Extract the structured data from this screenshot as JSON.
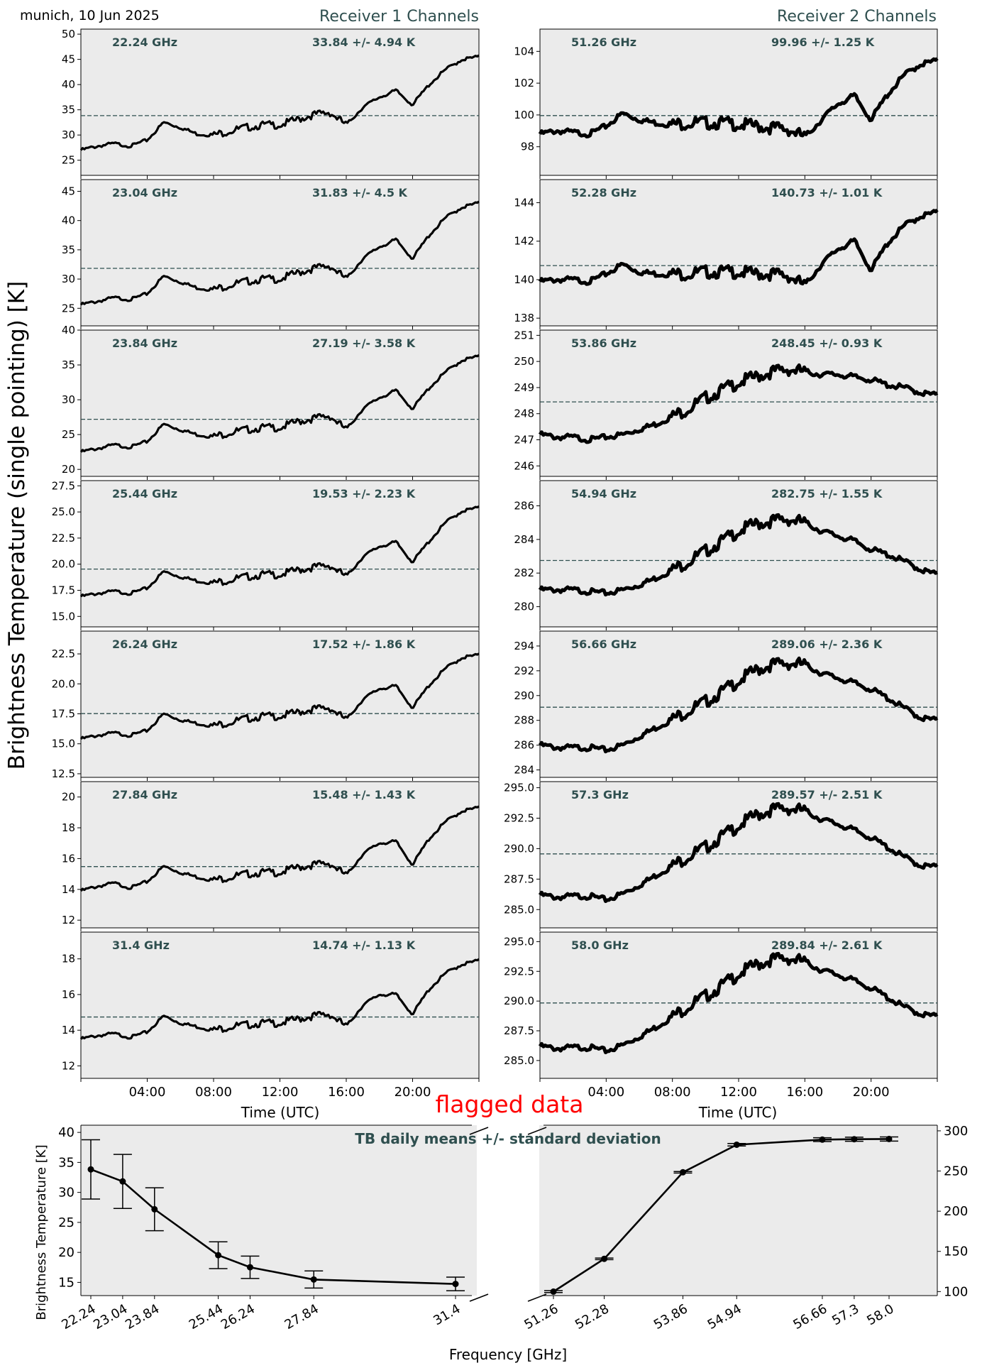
{
  "header": {
    "station_date": "munich, 10 Jun 2025",
    "receiver1_title": "Receiver 1 Channels",
    "receiver2_title": "Receiver 2 Channels",
    "ylabel": "Brightness Temperature (single pointing) [K]",
    "xlabel": "Time (UTC)"
  },
  "colors": {
    "panel_bg": "#ebebeb",
    "series": "#000000",
    "annotation": "#2f4f4f",
    "flag": "#ff0000"
  },
  "summary": {
    "flag_text": "flagged data",
    "title": "TB daily means +/- standard deviation",
    "ylabel": "Brightness Temperature [K]",
    "xlabel": "Frequency [GHz]"
  },
  "chart_data": [
    {
      "type": "line",
      "receiver": 1,
      "channel": "22.24 GHz",
      "stat": "33.84 +/- 4.94 K",
      "mean": 33.84,
      "std": 4.94,
      "ylim": [
        22,
        51
      ],
      "yticks": [
        25,
        30,
        35,
        40,
        45,
        50
      ],
      "xticks": [
        "04:00",
        "08:00",
        "12:00",
        "16:00",
        "20:00"
      ],
      "xlim": [
        0,
        24
      ],
      "x": [
        0,
        1,
        2,
        3,
        4,
        5,
        6,
        7,
        8,
        9,
        10,
        11,
        12,
        13,
        14,
        15,
        16,
        17,
        18,
        19,
        20,
        21,
        22,
        23,
        24
      ],
      "y": [
        27,
        27.8,
        28.3,
        27.8,
        29,
        32.5,
        31.5,
        30.2,
        30,
        30.8,
        31.5,
        32,
        32,
        33,
        34,
        34.5,
        32,
        35.5,
        37.5,
        38.8,
        36,
        40,
        43,
        45,
        45.5
      ]
    },
    {
      "type": "line",
      "receiver": 1,
      "channel": "23.04 GHz",
      "stat": "31.83 +/- 4.5 K",
      "mean": 31.83,
      "std": 4.5,
      "ylim": [
        22,
        47
      ],
      "yticks": [
        25,
        30,
        35,
        40,
        45
      ],
      "xticks": [
        "04:00",
        "08:00",
        "12:00",
        "16:00",
        "20:00"
      ],
      "xlim": [
        0,
        24
      ],
      "x": [
        0,
        1,
        2,
        3,
        4,
        5,
        6,
        7,
        8,
        9,
        10,
        11,
        12,
        13,
        14,
        15,
        16,
        17,
        18,
        19,
        20,
        21,
        22,
        23,
        24
      ],
      "y": [
        25.6,
        26.2,
        26.8,
        26.5,
        27.5,
        30.5,
        29.5,
        28.5,
        28.2,
        29,
        29.6,
        30,
        30,
        31,
        31.8,
        32.3,
        30,
        33.5,
        35.5,
        36.7,
        33.5,
        37.5,
        40.5,
        42.3,
        43
      ]
    },
    {
      "type": "line",
      "receiver": 1,
      "channel": "23.84 GHz",
      "stat": "27.19 +/- 3.58 K",
      "mean": 27.19,
      "std": 3.58,
      "ylim": [
        19,
        40
      ],
      "yticks": [
        20,
        25,
        30,
        35,
        40
      ],
      "xticks": [
        "04:00",
        "08:00",
        "12:00",
        "16:00",
        "20:00"
      ],
      "xlim": [
        0,
        24
      ],
      "x": [
        0,
        1,
        2,
        3,
        4,
        5,
        6,
        7,
        8,
        9,
        10,
        11,
        12,
        13,
        14,
        15,
        16,
        17,
        18,
        19,
        20,
        21,
        22,
        23,
        24
      ],
      "y": [
        22.5,
        23,
        23.5,
        23.2,
        24,
        26.5,
        25.7,
        25,
        24.7,
        25.3,
        25.7,
        26,
        26,
        26.8,
        27.3,
        27.7,
        25.7,
        28.7,
        30.3,
        31.3,
        28.7,
        31.7,
        34,
        35.7,
        36.2
      ]
    },
    {
      "type": "line",
      "receiver": 1,
      "channel": "25.44 GHz",
      "stat": "19.53 +/- 2.23 K",
      "mean": 19.53,
      "std": 2.23,
      "ylim": [
        14,
        28
      ],
      "yticks": [
        15.0,
        17.5,
        20.0,
        22.5,
        25.0,
        27.5
      ],
      "ytick_labels": [
        "15.0",
        "17.5",
        "20.0",
        "22.5",
        "25.0",
        "27.5"
      ],
      "xticks": [
        "04:00",
        "08:00",
        "12:00",
        "16:00",
        "20:00"
      ],
      "xlim": [
        0,
        24
      ],
      "x": [
        0,
        1,
        2,
        3,
        4,
        5,
        6,
        7,
        8,
        9,
        10,
        11,
        12,
        13,
        14,
        15,
        16,
        17,
        18,
        19,
        20,
        21,
        22,
        23,
        24
      ],
      "y": [
        16.9,
        17.2,
        17.4,
        17.2,
        17.7,
        19.3,
        18.8,
        18.4,
        18.2,
        18.5,
        18.8,
        19,
        19,
        19.4,
        19.7,
        19.9,
        18.8,
        20.7,
        21.7,
        22.1,
        20.2,
        22.2,
        24,
        25.1,
        25.4
      ]
    },
    {
      "type": "line",
      "receiver": 1,
      "channel": "26.24 GHz",
      "stat": "17.52 +/- 1.86 K",
      "mean": 17.52,
      "std": 1.86,
      "ylim": [
        12.2,
        24.4
      ],
      "yticks": [
        12.5,
        15.0,
        17.5,
        20.0,
        22.5
      ],
      "ytick_labels": [
        "12.5",
        "15.0",
        "17.5",
        "20.0",
        "22.5"
      ],
      "xticks": [
        "04:00",
        "08:00",
        "12:00",
        "16:00",
        "20:00"
      ],
      "xlim": [
        0,
        24
      ],
      "x": [
        0,
        1,
        2,
        3,
        4,
        5,
        6,
        7,
        8,
        9,
        10,
        11,
        12,
        13,
        14,
        15,
        16,
        17,
        18,
        19,
        20,
        21,
        22,
        23,
        24
      ],
      "y": [
        15.4,
        15.7,
        15.9,
        15.7,
        16.1,
        17.5,
        17,
        16.7,
        16.5,
        16.8,
        17.1,
        17.3,
        17.3,
        17.6,
        17.9,
        18,
        17,
        18.7,
        19.6,
        19.8,
        18,
        19.9,
        21.3,
        22.2,
        22.4
      ]
    },
    {
      "type": "line",
      "receiver": 1,
      "channel": "27.84 GHz",
      "stat": "15.48 +/- 1.43 K",
      "mean": 15.48,
      "std": 1.43,
      "ylim": [
        11.5,
        21
      ],
      "yticks": [
        12,
        14,
        16,
        18,
        20
      ],
      "xticks": [
        "04:00",
        "08:00",
        "12:00",
        "16:00",
        "20:00"
      ],
      "xlim": [
        0,
        24
      ],
      "x": [
        0,
        1,
        2,
        3,
        4,
        5,
        6,
        7,
        8,
        9,
        10,
        11,
        12,
        13,
        14,
        15,
        16,
        17,
        18,
        19,
        20,
        21,
        22,
        23,
        24
      ],
      "y": [
        13.9,
        14.2,
        14.4,
        14.1,
        14.5,
        15.5,
        15.1,
        14.8,
        14.6,
        14.8,
        15,
        15.1,
        15.1,
        15.4,
        15.6,
        15.7,
        14.9,
        16.3,
        17,
        17.1,
        15.6,
        17.3,
        18.4,
        19.1,
        19.3
      ]
    },
    {
      "type": "line",
      "receiver": 1,
      "channel": "31.4 GHz",
      "stat": "14.74 +/- 1.13 K",
      "mean": 14.74,
      "std": 1.13,
      "ylim": [
        11.3,
        19.5
      ],
      "yticks": [
        12,
        14,
        16,
        18
      ],
      "xticks": [
        "04:00",
        "08:00",
        "12:00",
        "16:00",
        "20:00"
      ],
      "xlim": [
        0,
        24
      ],
      "x": [
        0,
        1,
        2,
        3,
        4,
        5,
        6,
        7,
        8,
        9,
        10,
        11,
        12,
        13,
        14,
        15,
        16,
        17,
        18,
        19,
        20,
        21,
        22,
        23,
        24
      ],
      "y": [
        13.5,
        13.7,
        13.8,
        13.6,
        13.9,
        14.8,
        14.4,
        14.2,
        14,
        14.2,
        14.3,
        14.4,
        14.4,
        14.6,
        14.8,
        14.9,
        14.2,
        15.4,
        16,
        16,
        14.9,
        16.3,
        17.2,
        17.7,
        17.9
      ]
    },
    {
      "type": "line",
      "receiver": 2,
      "channel": "51.26 GHz",
      "stat": "99.96 +/- 1.25 K",
      "mean": 99.96,
      "std": 1.25,
      "ylim": [
        96.2,
        105.4
      ],
      "yticks": [
        98,
        100,
        102,
        104
      ],
      "xticks": [
        "04:00",
        "08:00",
        "12:00",
        "16:00",
        "20:00"
      ],
      "xlim": [
        0,
        24
      ],
      "x": [
        0,
        1,
        2,
        3,
        4,
        5,
        6,
        7,
        8,
        9,
        10,
        11,
        12,
        13,
        14,
        15,
        16,
        17,
        18,
        19,
        20,
        21,
        22,
        23,
        24
      ],
      "y": [
        98.8,
        99,
        98.9,
        98.8,
        99.3,
        100.1,
        99.7,
        99.5,
        99.4,
        99.5,
        99.5,
        99.5,
        99.4,
        99.3,
        99.2,
        99.1,
        98.6,
        99.7,
        100.7,
        101.2,
        99.7,
        101.3,
        102.5,
        103.2,
        103.4
      ]
    },
    {
      "type": "line",
      "receiver": 2,
      "channel": "52.28 GHz",
      "stat": "140.73 +/- 1.01 K",
      "mean": 140.73,
      "std": 1.01,
      "ylim": [
        137.6,
        145.2
      ],
      "yticks": [
        138,
        140,
        142,
        144
      ],
      "xticks": [
        "04:00",
        "08:00",
        "12:00",
        "16:00",
        "20:00"
      ],
      "xlim": [
        0,
        24
      ],
      "x": [
        0,
        1,
        2,
        3,
        4,
        5,
        6,
        7,
        8,
        9,
        10,
        11,
        12,
        13,
        14,
        15,
        16,
        17,
        18,
        19,
        20,
        21,
        22,
        23,
        24
      ],
      "y": [
        139.9,
        140,
        140,
        139.9,
        140.3,
        140.8,
        140.4,
        140.3,
        140.3,
        140.3,
        140.4,
        140.4,
        140.4,
        140.3,
        140.3,
        140.2,
        139.7,
        140.8,
        141.6,
        142,
        140.5,
        141.9,
        142.8,
        143.3,
        143.5
      ]
    },
    {
      "type": "line",
      "receiver": 2,
      "channel": "53.86 GHz",
      "stat": "248.45 +/- 0.93 K",
      "mean": 248.45,
      "std": 0.93,
      "ylim": [
        245.6,
        251.2
      ],
      "yticks": [
        246,
        247,
        248,
        249,
        250,
        251
      ],
      "xticks": [
        "04:00",
        "08:00",
        "12:00",
        "16:00",
        "20:00"
      ],
      "xlim": [
        0,
        24
      ],
      "x": [
        0,
        1,
        2,
        3,
        4,
        5,
        6,
        7,
        8,
        9,
        10,
        11,
        12,
        13,
        14,
        15,
        16,
        17,
        18,
        19,
        20,
        21,
        22,
        23,
        24
      ],
      "y": [
        247.2,
        247.1,
        247.1,
        247,
        247.1,
        247.2,
        247.4,
        247.6,
        247.9,
        248.2,
        248.6,
        248.9,
        249.2,
        249.4,
        249.6,
        249.7,
        249.6,
        249.5,
        249.5,
        249.4,
        249.3,
        249.1,
        249,
        248.8,
        248.7
      ]
    },
    {
      "type": "line",
      "receiver": 2,
      "channel": "54.94 GHz",
      "stat": "282.75 +/- 1.55 K",
      "mean": 282.75,
      "std": 1.55,
      "ylim": [
        278.8,
        287.5
      ],
      "yticks": [
        280,
        282,
        284,
        286
      ],
      "xticks": [
        "04:00",
        "08:00",
        "12:00",
        "16:00",
        "20:00"
      ],
      "xlim": [
        0,
        24
      ],
      "x": [
        0,
        1,
        2,
        3,
        4,
        5,
        6,
        7,
        8,
        9,
        10,
        11,
        12,
        13,
        14,
        15,
        16,
        17,
        18,
        19,
        20,
        21,
        22,
        23,
        24
      ],
      "y": [
        281,
        281,
        281,
        280.9,
        280.8,
        281,
        281.3,
        281.7,
        282.2,
        282.7,
        283.3,
        283.9,
        284.5,
        284.9,
        285.1,
        285.2,
        285,
        284.5,
        284.2,
        283.9,
        283.4,
        283.1,
        282.7,
        282.2,
        281.9
      ]
    },
    {
      "type": "line",
      "receiver": 2,
      "channel": "56.66 GHz",
      "stat": "289.06 +/- 2.36 K",
      "mean": 289.06,
      "std": 2.36,
      "ylim": [
        283.4,
        295.2
      ],
      "yticks": [
        284,
        286,
        288,
        290,
        292,
        294
      ],
      "xticks": [
        "04:00",
        "08:00",
        "12:00",
        "16:00",
        "20:00"
      ],
      "xlim": [
        0,
        24
      ],
      "x": [
        0,
        1,
        2,
        3,
        4,
        5,
        6,
        7,
        8,
        9,
        10,
        11,
        12,
        13,
        14,
        15,
        16,
        17,
        18,
        19,
        20,
        21,
        22,
        23,
        24
      ],
      "y": [
        286,
        285.8,
        285.8,
        285.8,
        285.6,
        286,
        286.7,
        287.4,
        288.1,
        288.8,
        289.5,
        290.3,
        291.2,
        292,
        292.5,
        292.6,
        292.5,
        291.8,
        291.4,
        291,
        290.5,
        289.8,
        289,
        288.2,
        288
      ]
    },
    {
      "type": "line",
      "receiver": 2,
      "channel": "57.3 GHz",
      "stat": "289.57 +/- 2.51 K",
      "mean": 289.57,
      "std": 2.51,
      "ylim": [
        283.5,
        295.5
      ],
      "yticks": [
        285.0,
        287.5,
        290.0,
        292.5,
        295.0
      ],
      "ytick_labels": [
        "285.0",
        "287.5",
        "290.0",
        "292.5",
        "295.0"
      ],
      "xticks": [
        "04:00",
        "08:00",
        "12:00",
        "16:00",
        "20:00"
      ],
      "xlim": [
        0,
        24
      ],
      "x": [
        0,
        1,
        2,
        3,
        4,
        5,
        6,
        7,
        8,
        9,
        10,
        11,
        12,
        13,
        14,
        15,
        16,
        17,
        18,
        19,
        20,
        21,
        22,
        23,
        24
      ],
      "y": [
        286.2,
        286,
        286.1,
        286.1,
        285.8,
        286.3,
        287,
        287.8,
        288.6,
        289.4,
        290.1,
        291,
        291.9,
        292.7,
        293.2,
        293.3,
        293.1,
        292.4,
        292,
        291.5,
        290.9,
        290.1,
        289.3,
        288.6,
        288.5
      ]
    },
    {
      "type": "line",
      "receiver": 2,
      "channel": "58.0 GHz",
      "stat": "289.84 +/- 2.61 K",
      "mean": 289.84,
      "std": 2.61,
      "ylim": [
        283.5,
        295.8
      ],
      "yticks": [
        285.0,
        287.5,
        290.0,
        292.5,
        295.0
      ],
      "ytick_labels": [
        "285.0",
        "287.5",
        "290.0",
        "292.5",
        "295.0"
      ],
      "xticks": [
        "04:00",
        "08:00",
        "12:00",
        "16:00",
        "20:00"
      ],
      "xlim": [
        0,
        24
      ],
      "x": [
        0,
        1,
        2,
        3,
        4,
        5,
        6,
        7,
        8,
        9,
        10,
        11,
        12,
        13,
        14,
        15,
        16,
        17,
        18,
        19,
        20,
        21,
        22,
        23,
        24
      ],
      "y": [
        286.2,
        286,
        286.1,
        286.1,
        285.8,
        286.3,
        287,
        287.8,
        288.7,
        289.6,
        290.4,
        291.3,
        292.3,
        293,
        293.5,
        293.6,
        293.3,
        292.6,
        292.2,
        291.7,
        291.1,
        290.3,
        289.5,
        288.9,
        288.7
      ]
    },
    {
      "type": "line",
      "title": "TB daily means +/- standard deviation",
      "xlabel": "Frequency [GHz]",
      "ylabel": "Brightness Temperature [K]",
      "grid": false,
      "receiver1": {
        "x": [
          22.24,
          23.04,
          23.84,
          25.44,
          26.24,
          27.84,
          31.4
        ],
        "x_labels": [
          "22.24",
          "23.04",
          "23.84",
          "25.44",
          "26.24",
          "27.84",
          "31.4"
        ],
        "mean": [
          33.84,
          31.83,
          27.19,
          19.53,
          17.52,
          15.48,
          14.74
        ],
        "std": [
          4.94,
          4.5,
          3.58,
          2.23,
          1.86,
          1.43,
          1.13
        ],
        "ylim": [
          12.8,
          41.2
        ],
        "yticks": [
          15,
          20,
          25,
          30,
          35,
          40
        ]
      },
      "receiver2": {
        "x": [
          51.26,
          52.28,
          53.86,
          54.94,
          56.66,
          57.3,
          58.0
        ],
        "x_labels": [
          "51.26",
          "52.28",
          "53.86",
          "54.94",
          "56.66",
          "57.3",
          "58.0"
        ],
        "mean": [
          99.96,
          140.73,
          248.45,
          282.75,
          289.06,
          289.57,
          289.84
        ],
        "std": [
          1.25,
          1.01,
          0.93,
          1.55,
          2.36,
          2.51,
          2.61
        ],
        "ylim": [
          95,
          307
        ],
        "yticks": [
          100,
          150,
          200,
          250,
          300
        ]
      }
    }
  ]
}
